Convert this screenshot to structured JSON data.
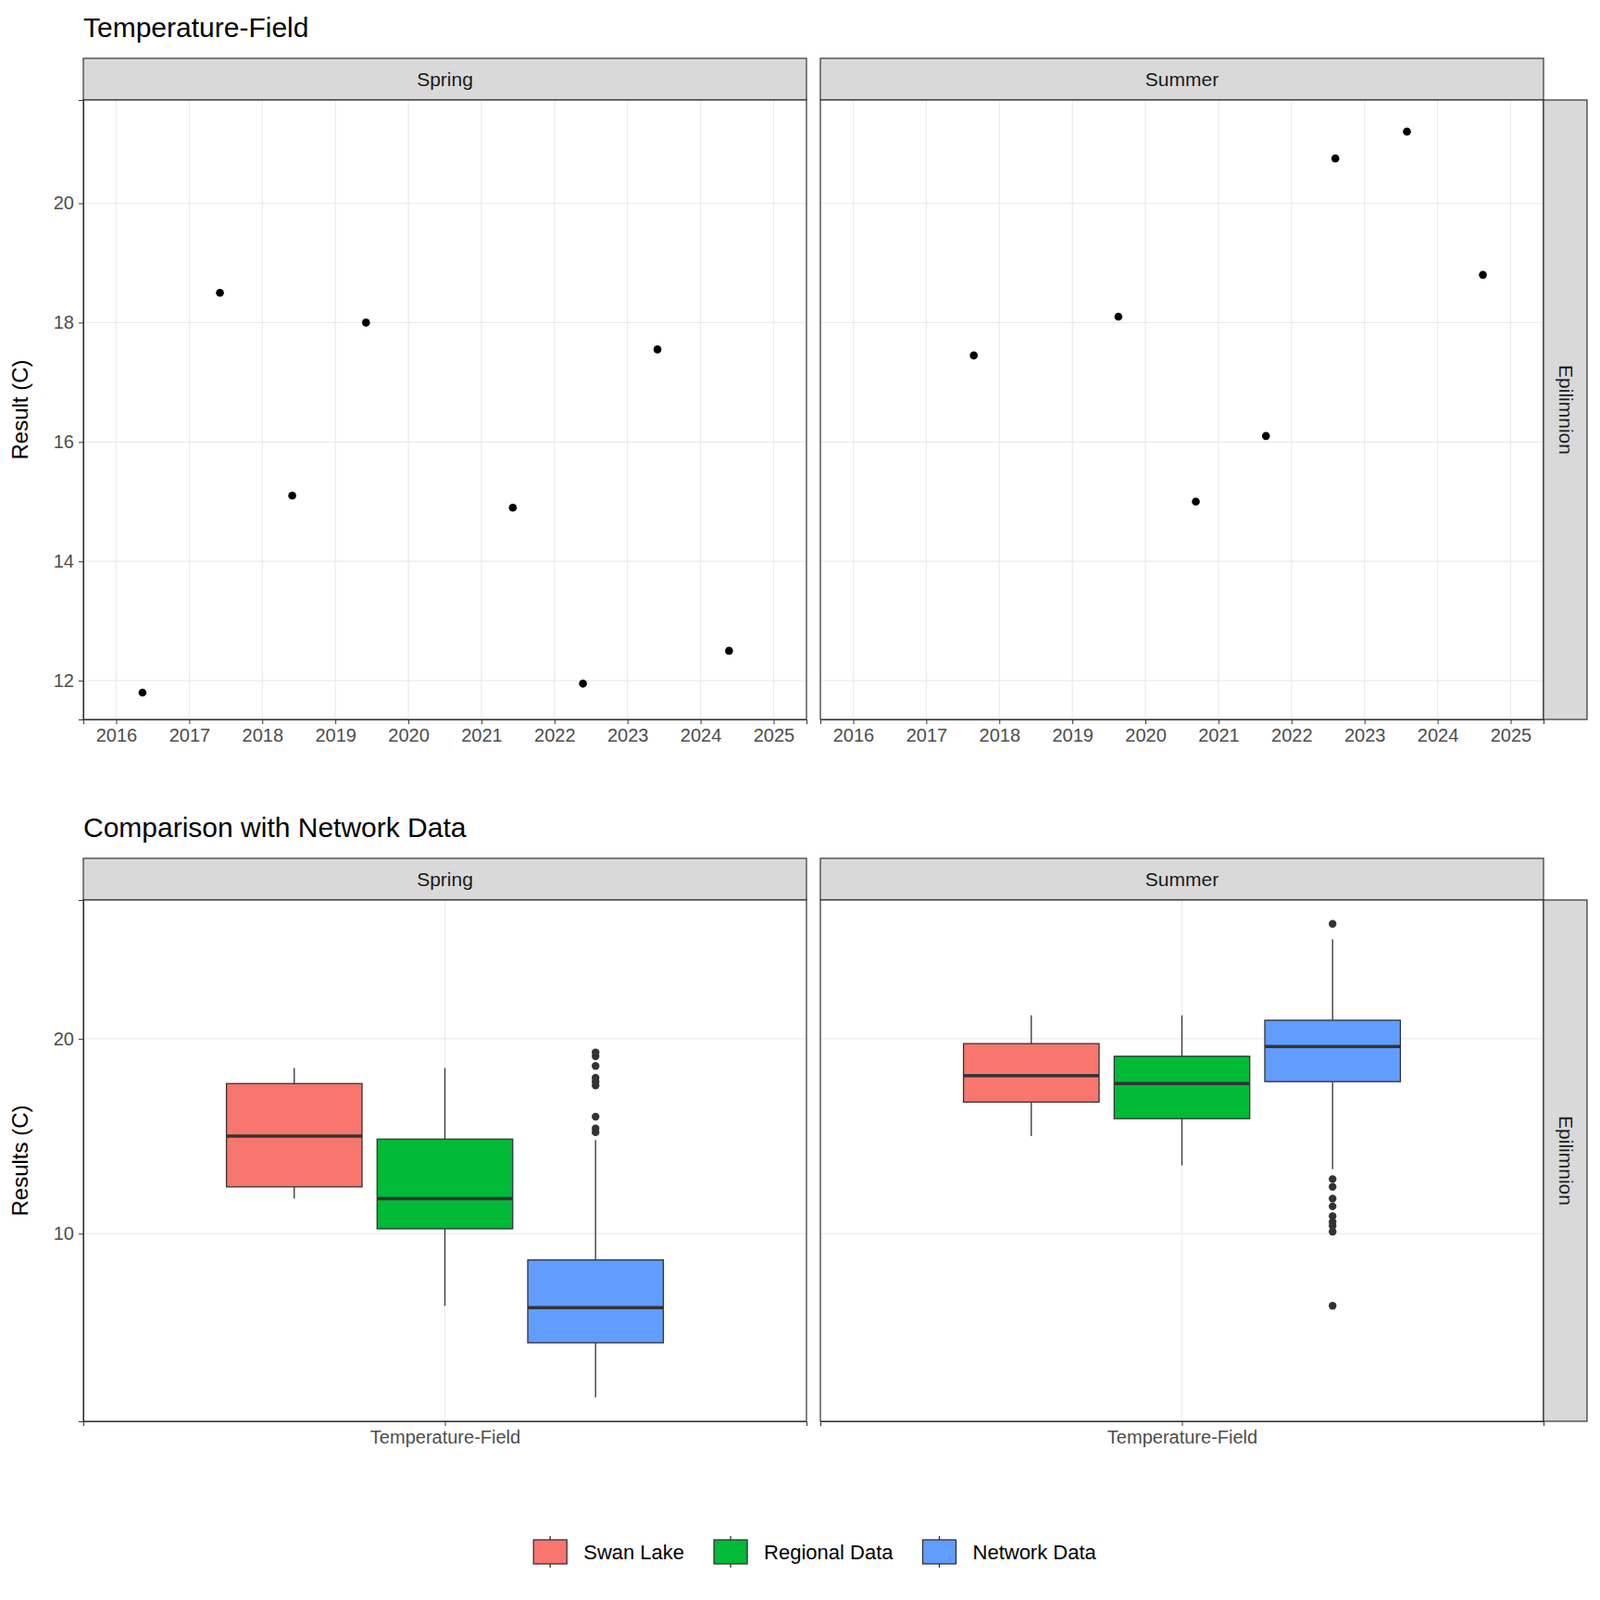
{
  "chart_data": [
    {
      "type": "scatter",
      "title": "Temperature-Field",
      "y_label": "Result (C)",
      "row": "Epilimnion",
      "xlim": [
        2015.55,
        2025.45
      ],
      "xticks": [
        2016,
        2017,
        2018,
        2019,
        2020,
        2021,
        2022,
        2023,
        2024,
        2025
      ],
      "ylim": [
        11.35,
        21.73
      ],
      "yticks": [
        12,
        14,
        16,
        18,
        20
      ],
      "grid": true,
      "color": "#000000",
      "marker": "circle",
      "panels": [
        {
          "name": "Spring",
          "x": [
            2016.36,
            2017.42,
            2018.41,
            2019.42,
            2021.43,
            2022.39,
            2023.41,
            2024.39
          ],
          "values": [
            11.8,
            18.5,
            15.1,
            18.0,
            14.9,
            11.95,
            17.55,
            12.5
          ]
        },
        {
          "name": "Summer",
          "x": [
            2017.65,
            2019.63,
            2020.69,
            2021.65,
            2022.6,
            2023.58,
            2024.62
          ],
          "values": [
            17.45,
            18.1,
            15.0,
            16.1,
            20.75,
            21.2,
            18.8
          ]
        }
      ]
    },
    {
      "type": "box",
      "title": "Comparison with Network Data",
      "y_label": "Results (C)",
      "row": "Epilimnion",
      "categories": [
        "Temperature-Field"
      ],
      "ylim": [
        0.37,
        27.12
      ],
      "yticks": [
        10,
        20
      ],
      "grid": true,
      "legend": "bottom",
      "series": [
        {
          "name": "Swan Lake",
          "color": "#F8766D"
        },
        {
          "name": "Regional Data",
          "color": "#00BA38"
        },
        {
          "name": "Network Data",
          "color": "#619CFF"
        }
      ],
      "panels": [
        {
          "name": "Spring",
          "boxes": [
            {
              "min": 11.8,
              "q1": 12.4,
              "median": 15.0,
              "q3": 17.7,
              "max": 18.5,
              "outliers": []
            },
            {
              "min": 6.3,
              "q1": 10.25,
              "median": 11.8,
              "q3": 14.85,
              "max": 18.5,
              "outliers": []
            },
            {
              "min": 1.6,
              "q1": 4.4,
              "median": 6.2,
              "q3": 8.65,
              "max": 14.8,
              "outliers": [
                15.2,
                15.4,
                16.0,
                17.6,
                17.8,
                18.0,
                18.6,
                19.1,
                19.3
              ]
            }
          ]
        },
        {
          "name": "Summer",
          "boxes": [
            {
              "min": 15.0,
              "q1": 16.75,
              "median": 18.1,
              "q3": 19.75,
              "max": 21.2,
              "outliers": []
            },
            {
              "min": 13.5,
              "q1": 15.9,
              "median": 17.7,
              "q3": 19.1,
              "max": 21.2,
              "outliers": []
            },
            {
              "min": 13.3,
              "q1": 17.8,
              "median": 19.6,
              "q3": 20.95,
              "max": 25.1,
              "outliers": [
                12.8,
                12.4,
                11.8,
                11.4,
                10.9,
                10.6,
                10.4,
                10.1,
                6.3,
                25.9
              ]
            }
          ]
        }
      ]
    }
  ]
}
